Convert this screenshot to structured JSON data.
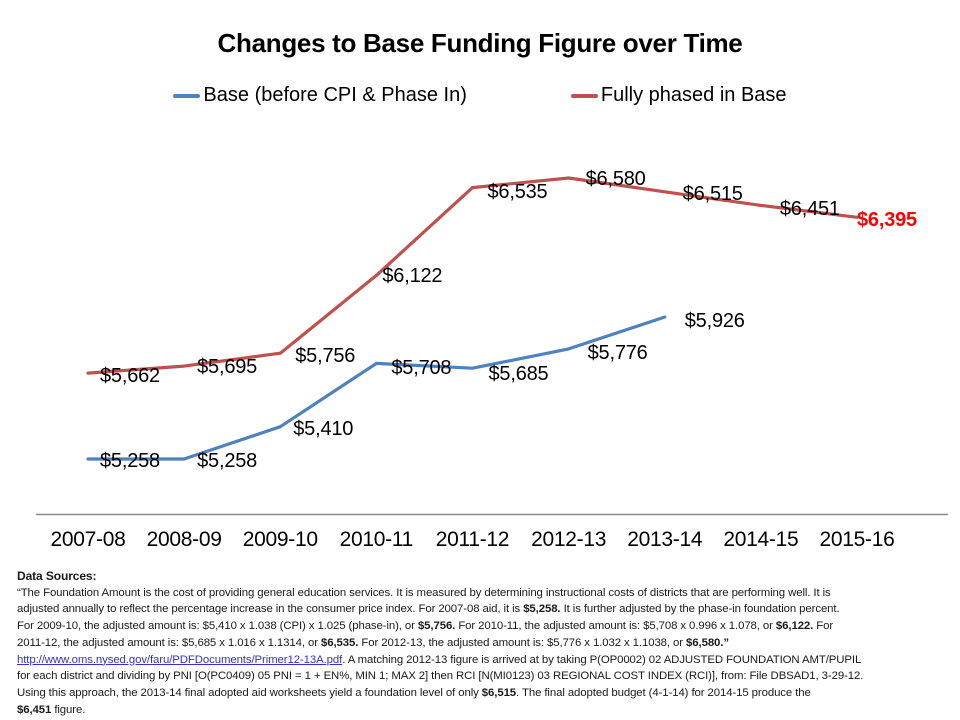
{
  "chart_data": {
    "type": "line",
    "title": "Changes to Base Funding Figure over Time",
    "categories": [
      "2007-08",
      "2008-09",
      "2009-10",
      "2010-11",
      "2011-12",
      "2012-13",
      "2013-14",
      "2014-15",
      "2015-16"
    ],
    "series": [
      {
        "name": "Base (before CPI & Phase In)",
        "color": "#4F81BD",
        "values": [
          5258,
          5258,
          5410,
          5708,
          5685,
          5776,
          5926,
          null,
          null
        ],
        "labels": [
          "$5,258",
          "$5,258",
          "$5,410",
          "$5,708",
          "$5,685",
          "$5,776",
          "$5,926"
        ]
      },
      {
        "name": "Fully phased in Base",
        "color": "#C0504D",
        "values": [
          5662,
          5695,
          5756,
          6122,
          6535,
          6580,
          6515,
          6451,
          6395
        ],
        "labels": [
          "$5,662",
          "$5,695",
          "$5,756",
          "$6,122",
          "$6,535",
          "$6,580",
          "$6,515",
          "$6,451",
          "$6,395"
        ],
        "final_label_color": "#FF0000",
        "final_label_bold": true
      }
    ],
    "ylim": [
      5100,
      6750
    ],
    "grid": false,
    "legend_position": "top",
    "axis_line_color": "#8c8c8c",
    "data_label_color": "#000000"
  },
  "footer": {
    "heading": "Data Sources:",
    "link_color": "#3333CC",
    "lines": [
      [
        {
          "t": "“The  Foundation Amount  is the  cost of providing general education services. It is measured by determining  instructional costs of districts that are performing well. It is"
        }
      ],
      [
        {
          "t": "adjusted annually to reflect the  percentage  increase in the consumer  price index. For 2007-08 aid, it is "
        },
        {
          "t": "$5,258.",
          "b": true
        },
        {
          "t": " It is further adjusted by the  phase-in foundation percent."
        }
      ],
      [
        {
          "t": "For 2009-10, the  adjusted amount  is: $5,410 x 1.038 (CPI) x 1.025  (phase-in), or "
        },
        {
          "t": "$5,756.",
          "b": true
        },
        {
          "t": " For 2010-11, the  adjusted amount  is: $5,708 x 0.996 x 1.078, or "
        },
        {
          "t": "$6,122.",
          "b": true
        },
        {
          "t": " For"
        }
      ],
      [
        {
          "t": "2011-12, the  adjusted amount  is: $5,685 x 1.016 x 1.1314, or "
        },
        {
          "t": "$6,535.",
          "b": true
        },
        {
          "t": " For 2012-13, the  adjusted amount  is: $5,776 x 1.032 x 1.1038, or "
        },
        {
          "t": "$6,580.”",
          "b": true
        }
      ],
      [
        {
          "t": "http://www.oms.nysed.gov/faru/PDFDocuments/Primer12-13A.pdf",
          "link": true
        },
        {
          "t": ".   A matching 2012-13 figure  is arrived at by taking P(OP0002) 02  ADJUSTED   FOUNDATION   AMT/PUPIL"
        }
      ],
      [
        {
          "t": "for each district and dividing by PNI  [O(PC0409)  05 PNI  =  1 + EN%,   MIN  1;  MAX  2]      then   RCI  [N(MI0123)  03 REGIONAL  COST  INDEX  (RCI)],  from:  File DBSAD1,  3-29-12."
        }
      ],
      [
        {
          "t": "Using this approach, the  2013-14 final adopted aid worksheets  yield a foundation level of only "
        },
        {
          "t": "$6,515",
          "b": true
        },
        {
          "t": ".   The  final adopted  budget  (4-1-14)  for  2014-15 produce  the"
        }
      ],
      [
        {
          "t": "$6,451",
          "b": true
        },
        {
          "t": " figure."
        }
      ]
    ]
  }
}
